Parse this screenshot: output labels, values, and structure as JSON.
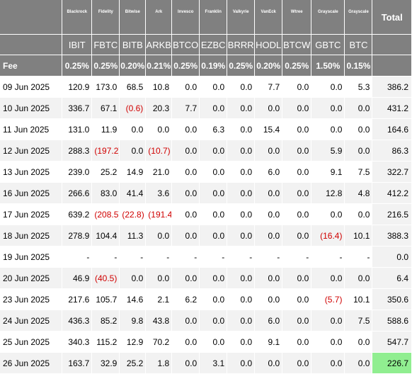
{
  "issuers": [
    "Blackrock",
    "Fidelity",
    "Bitwise",
    "Ark",
    "Invesco",
    "Franklin",
    "Valkyrie",
    "VanEck",
    "Wtree",
    "Grayscale",
    "Grayscale"
  ],
  "tickers": [
    "IBIT",
    "FBTC",
    "BITB",
    "ARKB",
    "BTCO",
    "EZBC",
    "BRRR",
    "HODL",
    "BTCW",
    "GBTC",
    "BTC"
  ],
  "total_label": "Total",
  "fee_label": "Fee",
  "fees": [
    "0.25%",
    "0.25%",
    "0.20%",
    "0.21%",
    "0.25%",
    "0.19%",
    "0.25%",
    "0.20%",
    "0.25%",
    "1.50%",
    "0.15%"
  ],
  "rows": [
    {
      "date": "09 Jun 2025",
      "values": [
        "120.9",
        "173.0",
        "68.5",
        "10.8",
        "0.0",
        "0.0",
        "0.0",
        "7.7",
        "0.0",
        "0.0",
        "5.3"
      ],
      "total": "386.2"
    },
    {
      "date": "10 Jun 2025",
      "values": [
        "336.7",
        "67.1",
        "(0.6)",
        "20.3",
        "7.7",
        "0.0",
        "0.0",
        "0.0",
        "0.0",
        "0.0",
        "0.0"
      ],
      "total": "431.2"
    },
    {
      "date": "11 Jun 2025",
      "values": [
        "131.0",
        "11.9",
        "0.0",
        "0.0",
        "0.0",
        "6.3",
        "0.0",
        "15.4",
        "0.0",
        "0.0",
        "0.0"
      ],
      "total": "164.6"
    },
    {
      "date": "12 Jun 2025",
      "values": [
        "288.3",
        "(197.2)",
        "0.0",
        "(10.7)",
        "0.0",
        "0.0",
        "0.0",
        "0.0",
        "0.0",
        "5.9",
        "0.0"
      ],
      "total": "86.3"
    },
    {
      "date": "13 Jun 2025",
      "values": [
        "239.0",
        "25.2",
        "14.9",
        "21.0",
        "0.0",
        "0.0",
        "0.0",
        "6.0",
        "0.0",
        "9.1",
        "7.5"
      ],
      "total": "322.7"
    },
    {
      "date": "16 Jun 2025",
      "values": [
        "266.6",
        "83.0",
        "41.4",
        "3.6",
        "0.0",
        "0.0",
        "0.0",
        "0.0",
        "0.0",
        "12.8",
        "4.8"
      ],
      "total": "412.2"
    },
    {
      "date": "17 Jun 2025",
      "values": [
        "639.2",
        "(208.5)",
        "(22.8)",
        "(191.4)",
        "0.0",
        "0.0",
        "0.0",
        "0.0",
        "0.0",
        "0.0",
        "0.0"
      ],
      "total": "216.5"
    },
    {
      "date": "18 Jun 2025",
      "values": [
        "278.9",
        "104.4",
        "11.3",
        "0.0",
        "0.0",
        "0.0",
        "0.0",
        "0.0",
        "0.0",
        "(16.4)",
        "10.1"
      ],
      "total": "388.3"
    },
    {
      "date": "19 Jun 2025",
      "values": [
        "-",
        "-",
        "-",
        "-",
        "-",
        "-",
        "-",
        "-",
        "-",
        "-",
        "-"
      ],
      "total": "0.0"
    },
    {
      "date": "20 Jun 2025",
      "values": [
        "46.9",
        "(40.5)",
        "0.0",
        "0.0",
        "0.0",
        "0.0",
        "0.0",
        "0.0",
        "0.0",
        "0.0",
        "0.0"
      ],
      "total": "6.4"
    },
    {
      "date": "23 Jun 2025",
      "values": [
        "217.6",
        "105.7",
        "14.6",
        "2.1",
        "6.2",
        "0.0",
        "0.0",
        "0.0",
        "0.0",
        "(5.7)",
        "10.1"
      ],
      "total": "350.6"
    },
    {
      "date": "24 Jun 2025",
      "values": [
        "436.3",
        "85.2",
        "9.8",
        "43.8",
        "0.0",
        "0.0",
        "0.0",
        "6.0",
        "0.0",
        "0.0",
        "7.5"
      ],
      "total": "588.6"
    },
    {
      "date": "25 Jun 2025",
      "values": [
        "340.3",
        "115.2",
        "12.9",
        "70.2",
        "0.0",
        "0.0",
        "0.0",
        "9.1",
        "0.0",
        "0.0",
        "0.0"
      ],
      "total": "547.7"
    },
    {
      "date": "26 Jun 2025",
      "values": [
        "163.7",
        "32.9",
        "25.2",
        "1.8",
        "0.0",
        "3.1",
        "0.0",
        "0.0",
        "0.0",
        "0.0",
        "0.0"
      ],
      "total": "226.7",
      "highlight": true
    }
  ],
  "colors": {
    "header_bg": "#808080",
    "negative": "#d00000",
    "highlight": "#90ee90",
    "alt_row": "#f2f2f2"
  }
}
